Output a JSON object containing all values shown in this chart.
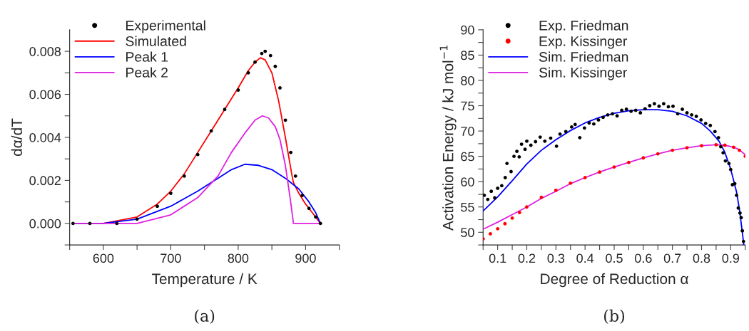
{
  "chart_data": [
    {
      "type": "line",
      "xlabel": "Temperature / K",
      "ylabel": "dα/dT",
      "annotations": [
        "(a)"
      ],
      "legend": "top left",
      "grid": false,
      "xlim": [
        550,
        950
      ],
      "ylim": [
        -0.001,
        0.009
      ],
      "xticks": [
        {
          "value": 550,
          "label": null
        },
        600,
        {
          "value": 650,
          "label": null
        },
        700,
        {
          "value": 750,
          "label": null
        },
        800,
        {
          "value": 850,
          "label": null
        },
        900,
        {
          "value": 950,
          "label": null
        }
      ],
      "yticks": [
        {
          "value": -0.001,
          "label": null
        },
        {
          "value": 0,
          "label": "0.000"
        },
        {
          "value": 0.001,
          "label": null
        },
        {
          "value": 0.002,
          "label": "0.002"
        },
        {
          "value": 0.003,
          "label": null
        },
        {
          "value": 0.004,
          "label": "0.004"
        },
        {
          "value": 0.005,
          "label": null
        },
        {
          "value": 0.006,
          "label": "0.006"
        },
        {
          "value": 0.007,
          "label": null
        },
        {
          "value": 0.008,
          "label": "0.008"
        }
      ],
      "series": [
        {
          "name": "Experimental",
          "type": "scatter",
          "marker": "circle",
          "color": "#000000",
          "x": [
            555,
            580,
            620,
            650,
            680,
            700,
            720,
            740,
            760,
            780,
            800,
            815,
            825,
            835,
            840,
            848,
            855,
            862,
            870,
            878,
            885,
            895,
            905,
            915,
            922
          ],
          "values": [
            0,
            0,
            0,
            0.0002,
            0.0008,
            0.0014,
            0.0022,
            0.0032,
            0.0043,
            0.0053,
            0.0062,
            0.007,
            0.0075,
            0.0079,
            0.008,
            0.0078,
            0.0073,
            0.0063,
            0.0048,
            0.0033,
            0.0022,
            0.0013,
            0.0007,
            0.0003,
            0
          ]
        },
        {
          "name": "Simulated",
          "color": "#ff0000",
          "x": [
            555,
            600,
            650,
            680,
            700,
            720,
            740,
            760,
            780,
            800,
            815,
            825,
            833,
            840,
            850,
            860,
            870,
            880,
            882,
            890,
            900,
            910,
            922
          ],
          "values": [
            0,
            0,
            0.0003,
            0.0009,
            0.0015,
            0.0023,
            0.0033,
            0.0043,
            0.0053,
            0.0063,
            0.0071,
            0.0075,
            0.0077,
            0.0076,
            0.007,
            0.0057,
            0.004,
            0.0022,
            0.0019,
            0.0014,
            0.0009,
            0.0005,
            0
          ]
        },
        {
          "name": "Peak 1",
          "color": "#0000ff",
          "x": [
            555,
            600,
            650,
            700,
            740,
            770,
            790,
            810,
            830,
            850,
            870,
            890,
            905,
            915,
            922
          ],
          "values": [
            0,
            0,
            0.0002,
            0.0008,
            0.0015,
            0.0021,
            0.0025,
            0.00275,
            0.0027,
            0.0025,
            0.0021,
            0.0016,
            0.001,
            0.0005,
            0
          ]
        },
        {
          "name": "Peak 2",
          "color": "#e020e0",
          "x": [
            555,
            650,
            700,
            740,
            770,
            790,
            810,
            825,
            836,
            845,
            855,
            862,
            870,
            877,
            882,
            922
          ],
          "values": [
            0,
            0,
            0.0004,
            0.0012,
            0.0022,
            0.0033,
            0.0042,
            0.0048,
            0.005,
            0.0049,
            0.0045,
            0.0039,
            0.0027,
            0.0012,
            0,
            0
          ]
        }
      ]
    },
    {
      "type": "line",
      "xlabel": "Degree of Reduction α",
      "ylabel": "Activation Energy / kJ mol$^{−1}$",
      "annotations": [
        "(b)"
      ],
      "legend": "top left",
      "grid": false,
      "xlim": [
        0.05,
        0.95
      ],
      "ylim": [
        47.5,
        90
      ],
      "xticks": [
        {
          "value": 0.05,
          "label": null
        },
        0.1,
        {
          "value": 0.15,
          "label": null
        },
        0.2,
        {
          "value": 0.25,
          "label": null
        },
        0.3,
        {
          "value": 0.35,
          "label": null
        },
        0.4,
        {
          "value": 0.45,
          "label": null
        },
        0.5,
        {
          "value": 0.55,
          "label": null
        },
        0.6,
        {
          "value": 0.65,
          "label": null
        },
        0.7,
        {
          "value": 0.75,
          "label": null
        },
        0.8,
        {
          "value": 0.85,
          "label": null
        },
        0.9,
        {
          "value": 0.95,
          "label": null
        }
      ],
      "yticks": [
        {
          "value": 47.5,
          "label": null
        },
        50,
        {
          "value": 52.5,
          "label": null
        },
        55,
        {
          "value": 57.5,
          "label": null
        },
        60,
        {
          "value": 62.5,
          "label": null
        },
        65,
        {
          "value": 67.5,
          "label": null
        },
        70,
        {
          "value": 72.5,
          "label": null
        },
        75,
        {
          "value": 77.5,
          "label": null
        },
        80,
        {
          "value": 82.5,
          "label": null
        },
        85,
        {
          "value": 87.5,
          "label": null
        },
        90
      ],
      "series": [
        {
          "name": "Exp. Friedman",
          "type": "scatter",
          "marker": "circle",
          "color": "#000000",
          "x": [
            0.054,
            0.066,
            0.078,
            0.09,
            0.1,
            0.114,
            0.126,
            0.132,
            0.146,
            0.156,
            0.166,
            0.174,
            0.182,
            0.194,
            0.2,
            0.214,
            0.23,
            0.246,
            0.262,
            0.282,
            0.302,
            0.314,
            0.334,
            0.354,
            0.366,
            0.382,
            0.398,
            0.414,
            0.43,
            0.446,
            0.462,
            0.478,
            0.494,
            0.51,
            0.526,
            0.542,
            0.558,
            0.574,
            0.59,
            0.606,
            0.622,
            0.638,
            0.654,
            0.67,
            0.686,
            0.702,
            0.718,
            0.734,
            0.75,
            0.766,
            0.782,
            0.798,
            0.814,
            0.83,
            0.846,
            0.858,
            0.866,
            0.874,
            0.882,
            0.894,
            0.9,
            0.906,
            0.914,
            0.92,
            0.926,
            0.932,
            0.936,
            0.94,
            0.944
          ],
          "values": [
            57.3,
            56.5,
            58.1,
            56.8,
            58.7,
            59.2,
            60.8,
            63.6,
            62.0,
            65.0,
            66.0,
            64.9,
            67.4,
            66.4,
            68.0,
            67.2,
            67.9,
            68.8,
            68.0,
            68.6,
            67.0,
            69.4,
            69.9,
            70.8,
            71.3,
            68.7,
            70.6,
            71.6,
            71.4,
            72.2,
            72.7,
            73.2,
            73.4,
            73.0,
            74.1,
            74.3,
            73.9,
            74.1,
            73.6,
            74.4,
            75.0,
            75.4,
            74.9,
            75.4,
            74.8,
            74.9,
            73.4,
            74.3,
            73.6,
            73.2,
            72.9,
            72.2,
            71.5,
            71.1,
            69.9,
            68.7,
            66.9,
            65.7,
            64.1,
            63.6,
            62.4,
            59.4,
            59.6,
            57.3,
            54.8,
            53.8,
            52.9,
            50.3,
            48.2
          ]
        },
        {
          "name": "Exp. Kissinger",
          "type": "scatter",
          "marker": "circle",
          "color": "#ff0000",
          "x": [
            0.05,
            0.075,
            0.1,
            0.125,
            0.15,
            0.175,
            0.2,
            0.25,
            0.3,
            0.35,
            0.4,
            0.45,
            0.5,
            0.55,
            0.6,
            0.65,
            0.7,
            0.75,
            0.8,
            0.85,
            0.88,
            0.91,
            0.93,
            0.95
          ],
          "values": [
            48.7,
            49.7,
            50.7,
            51.7,
            52.8,
            53.9,
            55.0,
            56.9,
            58.3,
            59.7,
            60.8,
            61.9,
            62.9,
            63.8,
            64.7,
            65.5,
            66.2,
            66.7,
            67.1,
            67.3,
            67.2,
            66.8,
            66.2,
            65.0
          ]
        },
        {
          "name": "Sim. Friedman",
          "color": "#0000ff",
          "x": [
            0.05,
            0.1,
            0.15,
            0.2,
            0.25,
            0.3,
            0.35,
            0.4,
            0.45,
            0.5,
            0.55,
            0.6,
            0.65,
            0.7,
            0.75,
            0.8,
            0.83,
            0.86,
            0.88,
            0.9,
            0.92,
            0.93,
            0.94,
            0.945
          ],
          "values": [
            54.2,
            57.0,
            60.2,
            63.5,
            66.2,
            68.3,
            70.1,
            71.6,
            72.7,
            73.5,
            74.0,
            74.2,
            74.2,
            73.9,
            73.0,
            71.5,
            70.0,
            68.0,
            65.8,
            62.5,
            58.0,
            54.5,
            50.0,
            47.5
          ]
        },
        {
          "name": "Sim. Kissinger",
          "color": "#e020e0",
          "x": [
            0.05,
            0.1,
            0.15,
            0.2,
            0.25,
            0.3,
            0.35,
            0.4,
            0.45,
            0.5,
            0.55,
            0.6,
            0.65,
            0.7,
            0.75,
            0.8,
            0.85,
            0.88,
            0.91,
            0.93,
            0.95
          ],
          "values": [
            50.6,
            52.0,
            53.5,
            55.0,
            56.7,
            58.1,
            59.6,
            60.8,
            61.9,
            62.9,
            63.8,
            64.7,
            65.5,
            66.2,
            66.7,
            67.1,
            67.3,
            67.2,
            66.8,
            66.3,
            65.3
          ]
        }
      ]
    }
  ]
}
